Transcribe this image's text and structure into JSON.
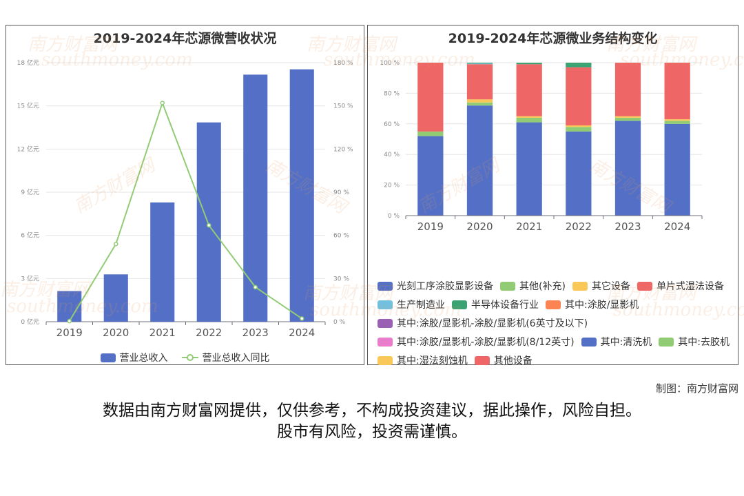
{
  "credit": "制图：南方财富网",
  "disclaimer": {
    "line1": "数据由南方财富网提供，仅供参考，不构成投资建议，据此操作，风险自担。",
    "line2": "股市有风险，投资需谨慎。"
  },
  "watermark": {
    "cn": "南方财富网",
    "en": "southmoney.com"
  },
  "chart_data": [
    {
      "type": "bar",
      "title": "2019-2024年芯源微营收状况",
      "categories": [
        "2019",
        "2020",
        "2021",
        "2022",
        "2023",
        "2024"
      ],
      "series": [
        {
          "name": "营业总收入",
          "type": "bar",
          "axis": "left",
          "values": [
            2.13,
            3.29,
            8.29,
            13.85,
            17.17,
            17.54
          ],
          "color": "#5470c6"
        },
        {
          "name": "营业总收入同比",
          "type": "line",
          "axis": "right",
          "values": [
            0.4,
            54.0,
            152.0,
            67.0,
            24.0,
            2.2
          ],
          "color": "#91cc75"
        }
      ],
      "y_left": {
        "min": 0,
        "max": 18,
        "ticks": [
          0,
          3,
          6,
          9,
          12,
          15,
          18
        ],
        "tick_labels": [
          "0 亿元",
          "3 亿元",
          "6 亿元",
          "9 亿元",
          "12 亿元",
          "15 亿元",
          "18 亿元"
        ]
      },
      "y_right": {
        "min": 0,
        "max": 180,
        "ticks": [
          0,
          30,
          60,
          90,
          120,
          150,
          180
        ],
        "tick_labels": [
          "0 %",
          "30 %",
          "60 %",
          "90 %",
          "120 %",
          "150 %",
          "180 %"
        ]
      },
      "grid": true,
      "legend": "bottom"
    },
    {
      "type": "bar",
      "stacked": true,
      "title": "2019-2024年芯源微业务结构变化",
      "categories": [
        "2019",
        "2020",
        "2021",
        "2022",
        "2023",
        "2024"
      ],
      "y": {
        "min": 0,
        "max": 100,
        "ticks": [
          0,
          20,
          40,
          60,
          80,
          100
        ],
        "tick_labels": [
          "0 %",
          "20 %",
          "40 %",
          "60 %",
          "80 %",
          "100 %"
        ]
      },
      "series": [
        {
          "name": "光刻工序涂胶显影设备",
          "color": "#5470c6",
          "values": [
            52,
            72,
            61,
            55,
            62,
            60
          ]
        },
        {
          "name": "其他(补充)",
          "color": "#91cc75",
          "values": [
            3,
            2,
            3,
            3,
            2,
            2
          ]
        },
        {
          "name": "其它设备",
          "color": "#fac858",
          "values": [
            0,
            2,
            1,
            1,
            1,
            1
          ]
        },
        {
          "name": "单片式湿法设备",
          "color": "#ee6666",
          "values": [
            45,
            23,
            34,
            38,
            35,
            37
          ]
        },
        {
          "name": "生产制造业",
          "color": "#73c0de",
          "values": [
            0,
            0.5,
            0,
            0,
            0,
            0
          ]
        },
        {
          "name": "半导体设备行业",
          "color": "#3ba272",
          "values": [
            0,
            0.5,
            1,
            3,
            0,
            0
          ]
        },
        {
          "name": "其中:涂胶/显影机",
          "color": "#fc8452",
          "values": [
            0,
            0,
            0,
            0,
            0,
            0
          ]
        },
        {
          "name": "其中:涂胶/显影机-涂胶/显影机(6英寸及以下)",
          "color": "#9a60b4",
          "values": [
            0,
            0,
            0,
            0,
            0,
            0
          ]
        },
        {
          "name": "其中:涂胶/显影机-涂胶/显影机(8/12英寸)",
          "color": "#ea7ccc",
          "values": [
            0,
            0,
            0,
            0,
            0,
            0
          ]
        },
        {
          "name": "其中:清洗机",
          "color": "#5470c6",
          "values": [
            0,
            0,
            0,
            0,
            0,
            0
          ]
        },
        {
          "name": "其中:去胶机",
          "color": "#91cc75",
          "values": [
            0,
            0,
            0,
            0,
            0,
            0
          ]
        },
        {
          "name": "其中:湿法刻蚀机",
          "color": "#fac858",
          "values": [
            0,
            0,
            0,
            0,
            0,
            0
          ]
        },
        {
          "name": "其他设备",
          "color": "#ee6666",
          "values": [
            0,
            0,
            0,
            0,
            0,
            0
          ]
        }
      ],
      "grid": true,
      "legend": "bottom"
    }
  ]
}
